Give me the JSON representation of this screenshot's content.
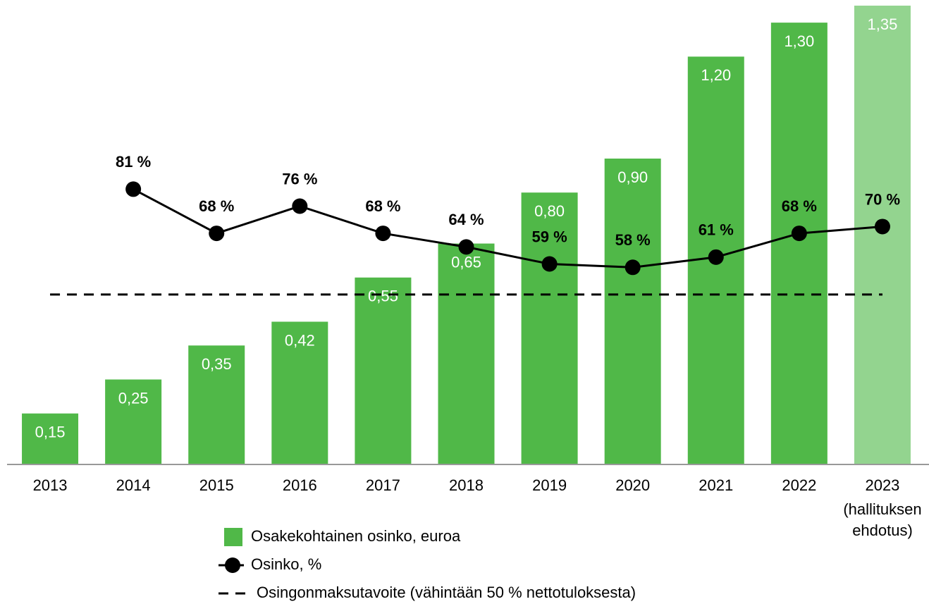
{
  "chart_data": {
    "type": "bar-line",
    "categories": [
      "2013",
      "2014",
      "2015",
      "2016",
      "2017",
      "2018",
      "2019",
      "2020",
      "2021",
      "2022",
      "2023"
    ],
    "annotation": "(hallituksen ehdotus)",
    "ylim": [
      0,
      1.35
    ],
    "y2lim": [
      0,
      135
    ],
    "series": [
      {
        "name": "Osakekohtainen osinko, euroa",
        "type": "bar",
        "colors": [
          "#50b848",
          "#50b848",
          "#50b848",
          "#50b848",
          "#50b848",
          "#50b848",
          "#50b848",
          "#50b848",
          "#50b848",
          "#50b848",
          "#93d48f"
        ],
        "values": [
          0.15,
          0.25,
          0.35,
          0.42,
          0.55,
          0.65,
          0.8,
          0.9,
          1.2,
          1.3,
          1.35
        ],
        "value_labels": [
          "0,15",
          "0,25",
          "0,35",
          "0,42",
          "0,55",
          "0,65",
          "0,80",
          "0,90",
          "1,20",
          "1,30",
          "1,35"
        ]
      },
      {
        "name": "Osinko, %",
        "type": "line",
        "axis": "y2",
        "color": "#000000",
        "values": [
          null,
          81,
          68,
          76,
          68,
          64,
          59,
          58,
          61,
          68,
          70
        ],
        "value_labels": [
          null,
          "81 %",
          "68 %",
          "76 %",
          "68 %",
          "64 %",
          "59 %",
          "58 %",
          "61 %",
          "68 %",
          "70 %"
        ]
      },
      {
        "name": "Osingonmaksutavoite (vähintään 50 % nettotuloksesta)",
        "type": "reference",
        "axis": "y2",
        "color": "#000000",
        "value": 50
      }
    ]
  }
}
